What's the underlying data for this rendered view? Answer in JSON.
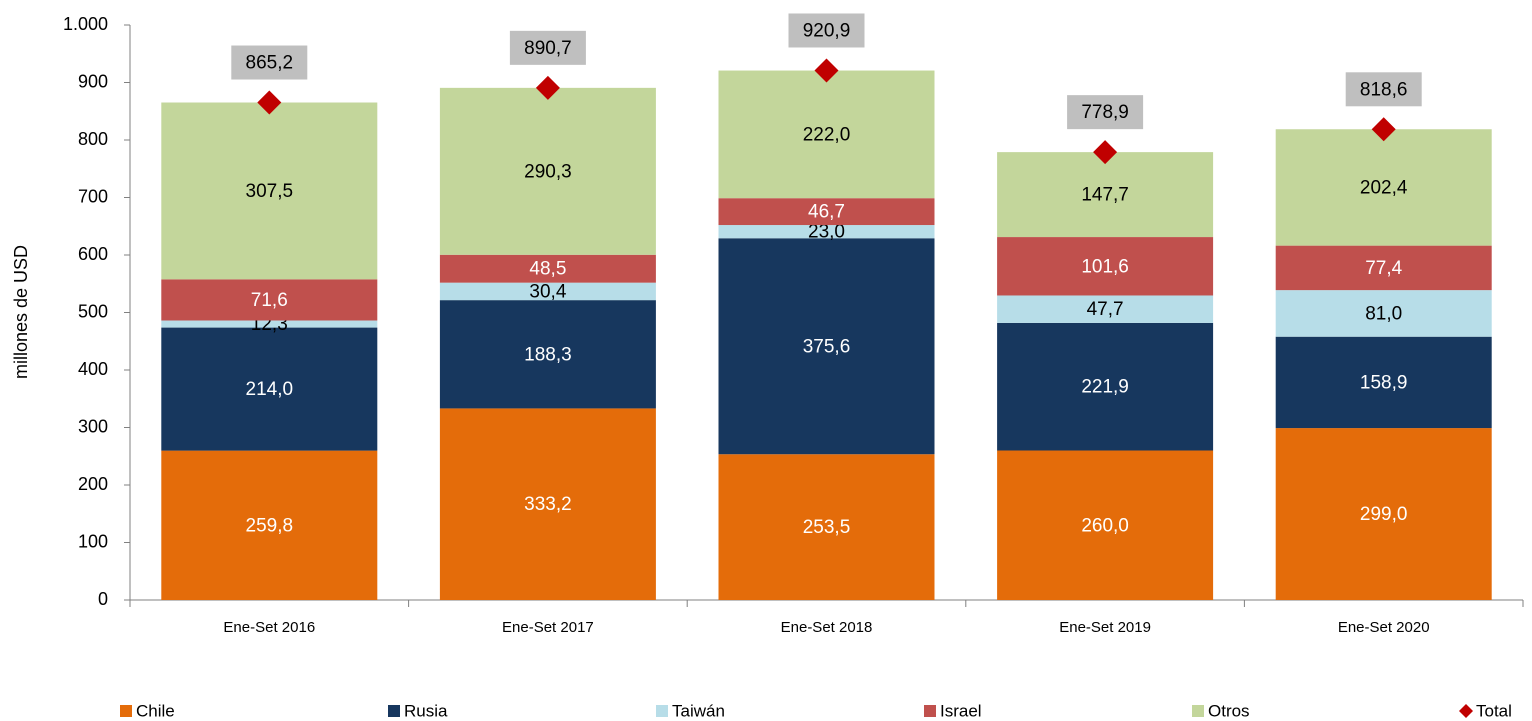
{
  "chart_data": {
    "type": "bar",
    "stacked": true,
    "y_label": "millones de  USD",
    "categories": [
      "Ene-Set 2016",
      "Ene-Set 2017",
      "Ene-Set 2018",
      "Ene-Set 2019",
      "Ene-Set 2020"
    ],
    "ylim": [
      0,
      1000
    ],
    "yticks": [
      0,
      100,
      200,
      300,
      400,
      500,
      600,
      700,
      800,
      900,
      {
        "value": 1000,
        "label": "1.000"
      }
    ],
    "series": [
      {
        "name": "Chile",
        "color": "#e46c0a",
        "label_color": "#ffffff",
        "values": [
          259.8,
          333.2,
          253.5,
          260.0,
          299.0
        ],
        "value_labels": [
          "259,8",
          "333,2",
          "253,5",
          "260,0",
          "299,0"
        ]
      },
      {
        "name": "Rusia",
        "color": "#17375e",
        "label_color": "#ffffff",
        "values": [
          214.0,
          188.3,
          375.6,
          221.9,
          158.9
        ],
        "value_labels": [
          "214,0",
          "188,3",
          "375,6",
          "221,9",
          "158,9"
        ]
      },
      {
        "name": "Taiwán",
        "color": "#b7dde8",
        "label_color": "#000000",
        "values": [
          12.3,
          30.4,
          23.0,
          47.7,
          81.0
        ],
        "value_labels": [
          "12,3",
          "30,4",
          "23,0",
          "47,7",
          "81,0"
        ]
      },
      {
        "name": "Israel",
        "color": "#c0504d",
        "label_color": "#ffffff",
        "values": [
          71.6,
          48.5,
          46.7,
          101.6,
          77.4
        ],
        "value_labels": [
          "71,6",
          "48,5",
          "46,7",
          "101,6",
          "77,4"
        ]
      },
      {
        "name": "Otros",
        "color": "#c3d69b",
        "label_color": "#000000",
        "values": [
          307.5,
          290.3,
          222.0,
          147.7,
          202.4
        ],
        "value_labels": [
          "307,5",
          "290,3",
          "222,0",
          "147,7",
          "202,4"
        ]
      }
    ],
    "total": {
      "name": "Total",
      "color": "#c00000",
      "values": [
        865.2,
        890.7,
        920.9,
        778.9,
        818.6
      ],
      "value_labels": [
        "865,2",
        "890,7",
        "920,9",
        "778,9",
        "818,6"
      ]
    }
  }
}
